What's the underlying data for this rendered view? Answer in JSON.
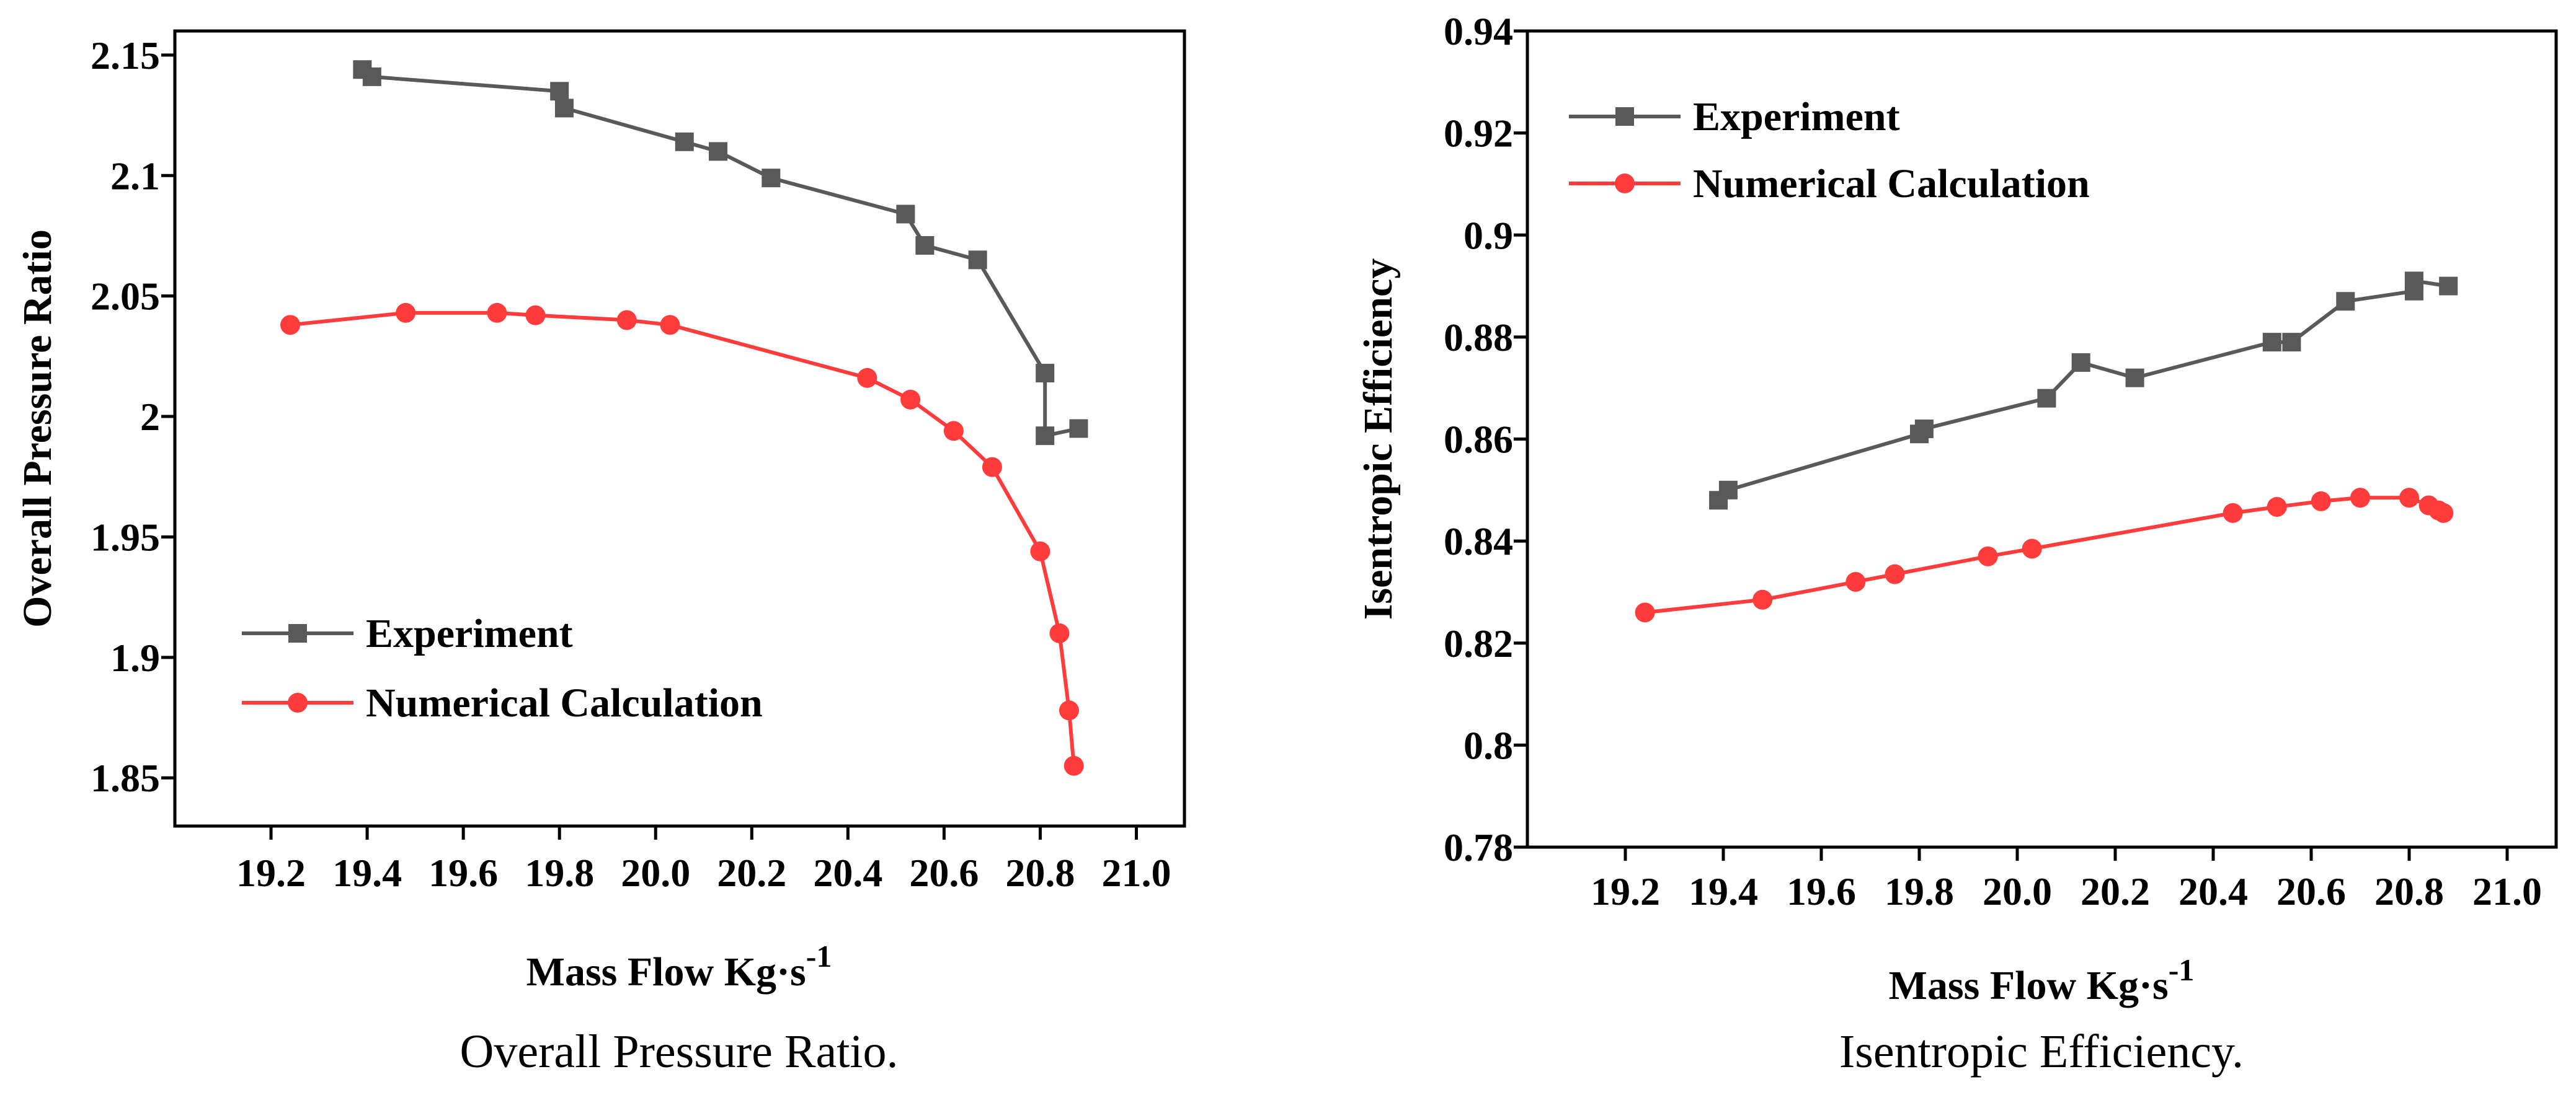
{
  "colors": {
    "experiment": "#595959",
    "numerical": "#ff3b3b",
    "axis": "#000000"
  },
  "chart_data": [
    {
      "type": "line",
      "title": "",
      "caption": "Overall Pressure Ratio.",
      "xlabel": "Mass Flow",
      "xlabel_unit": "Kg·s",
      "xlabel_exp": "-1",
      "ylabel": "Overall Pressure Ratio",
      "xlim": [
        19.0,
        21.1
      ],
      "ylim": [
        1.83,
        2.16
      ],
      "xticks": [
        19.2,
        19.4,
        19.6,
        19.8,
        20.0,
        20.2,
        20.4,
        20.6,
        20.8,
        21.0
      ],
      "xtick_labels": [
        "19.2",
        "19.4",
        "19.6",
        "19.8",
        "20.0",
        "20.2",
        "20.4",
        "20.6",
        "20.8",
        "21.0"
      ],
      "yticks": [
        1.85,
        1.9,
        1.95,
        2.0,
        2.05,
        2.1,
        2.15
      ],
      "ytick_labels": [
        "1.85",
        "1.9",
        "1.95",
        "2",
        "2.05",
        "2.1",
        "2.15"
      ],
      "legend_position": "lower-left",
      "series": [
        {
          "name": "Experiment",
          "marker": "square",
          "x": [
            19.39,
            19.41,
            19.8,
            19.81,
            20.06,
            20.13,
            20.24,
            20.52,
            20.56,
            20.67,
            20.81,
            20.81,
            20.88
          ],
          "y": [
            2.144,
            2.141,
            2.135,
            2.128,
            2.114,
            2.11,
            2.099,
            2.084,
            2.071,
            2.065,
            2.018,
            1.992,
            1.995
          ]
        },
        {
          "name": "Numerical Calculation",
          "marker": "circle",
          "x": [
            19.24,
            19.48,
            19.67,
            19.75,
            19.94,
            20.03,
            20.44,
            20.53,
            20.62,
            20.7,
            20.8,
            20.84,
            20.86,
            20.87
          ],
          "y": [
            2.038,
            2.043,
            2.043,
            2.042,
            2.04,
            2.038,
            2.016,
            2.007,
            1.994,
            1.979,
            1.944,
            1.91,
            1.878,
            1.855
          ]
        }
      ]
    },
    {
      "type": "line",
      "title": "",
      "caption": "Isentropic Efficiency.",
      "xlabel": "Mass Flow",
      "xlabel_unit": "Kg·s",
      "xlabel_exp": "-1",
      "ylabel": "Isentropic Efficiency",
      "xlim": [
        19.0,
        21.1
      ],
      "ylim": [
        0.78,
        0.94
      ],
      "xticks": [
        19.2,
        19.4,
        19.6,
        19.8,
        20.0,
        20.2,
        20.4,
        20.6,
        20.8,
        21.0
      ],
      "xtick_labels": [
        "19.2",
        "19.4",
        "19.6",
        "19.8",
        "20.0",
        "20.2",
        "20.4",
        "20.6",
        "20.8",
        "21.0"
      ],
      "yticks": [
        0.78,
        0.8,
        0.82,
        0.84,
        0.86,
        0.88,
        0.9,
        0.92,
        0.94
      ],
      "ytick_labels": [
        "0.78",
        "0.8",
        "0.82",
        "0.84",
        "0.86",
        "0.88",
        "0.9",
        "0.92",
        "0.94"
      ],
      "legend_position": "top-left",
      "series": [
        {
          "name": "Experiment",
          "marker": "square",
          "x": [
            19.39,
            19.41,
            19.8,
            19.81,
            20.06,
            20.13,
            20.24,
            20.52,
            20.56,
            20.67,
            20.81,
            20.81,
            20.88
          ],
          "y": [
            0.848,
            0.85,
            0.861,
            0.862,
            0.868,
            0.875,
            0.872,
            0.879,
            0.879,
            0.887,
            0.889,
            0.891,
            0.89
          ]
        },
        {
          "name": "Numerical Calculation",
          "marker": "circle",
          "x": [
            19.24,
            19.48,
            19.67,
            19.75,
            19.94,
            20.03,
            20.44,
            20.53,
            20.62,
            20.7,
            20.8,
            20.84,
            20.86,
            20.87
          ],
          "y": [
            0.826,
            0.8285,
            0.832,
            0.8335,
            0.837,
            0.8385,
            0.8455,
            0.8467,
            0.8478,
            0.8485,
            0.8485,
            0.847,
            0.846,
            0.8455
          ]
        }
      ]
    }
  ]
}
